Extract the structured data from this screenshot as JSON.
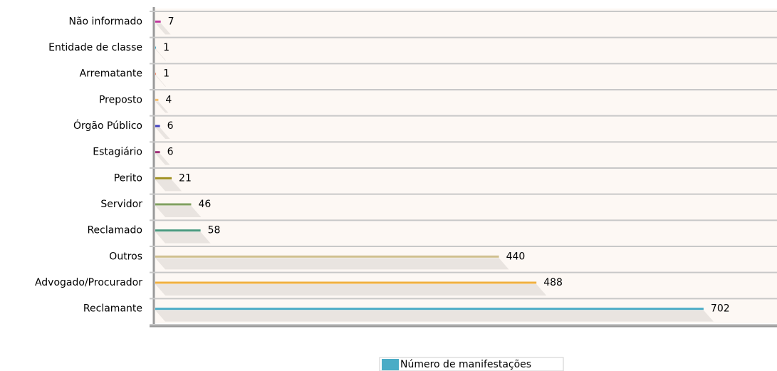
{
  "chart_data": {
    "type": "hbar",
    "categories": [
      "Não informado",
      "Entidade de classe",
      "Arrematante",
      "Preposto",
      "Órgão Público",
      "Estagiário",
      "Perito",
      "Servidor",
      "Reclamado",
      "Outros",
      "Advogado/Procurador",
      "Reclamante"
    ],
    "series": [
      {
        "name": "Número de manifestações",
        "color": "#4bacc6",
        "values": [
          7,
          1,
          1,
          4,
          6,
          6,
          21,
          46,
          58,
          440,
          488,
          702
        ],
        "colors": [
          "#c0399f",
          "#4bacc6",
          "#f09070",
          "#f5c070",
          "#4040c0",
          "#a0307a",
          "#a09020",
          "#80a060",
          "#4a9a80",
          "#d0c090",
          "#f0b040",
          "#4bacc6"
        ]
      }
    ],
    "xlim": [
      0,
      796
    ]
  }
}
